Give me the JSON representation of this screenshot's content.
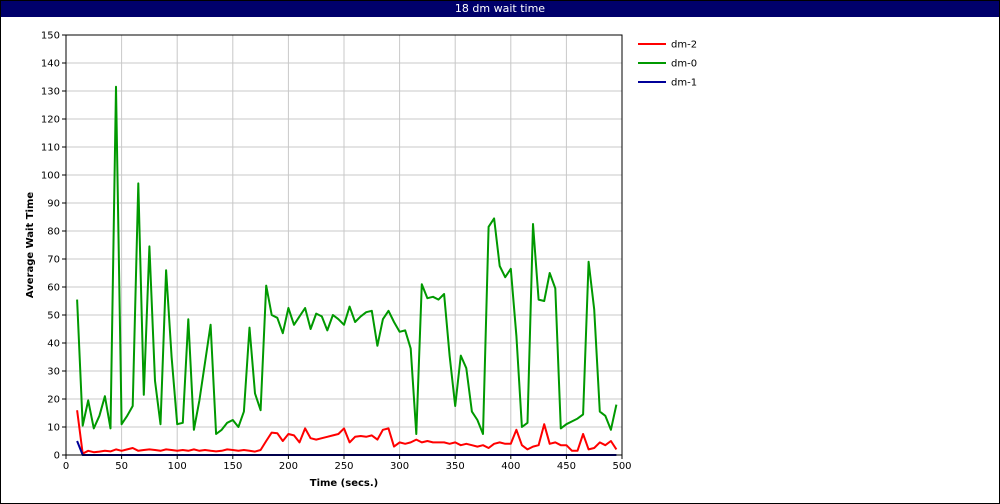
{
  "chart_data": {
    "type": "line",
    "title": "18 dm wait time",
    "xlabel": "Time (secs.)",
    "ylabel": "Average Wait Time",
    "xlim": [
      0,
      500
    ],
    "ylim": [
      0,
      150
    ],
    "x_ticks": [
      0,
      50,
      100,
      150,
      200,
      250,
      300,
      350,
      400,
      450,
      500
    ],
    "y_ticks": [
      0,
      10,
      20,
      30,
      40,
      50,
      60,
      70,
      80,
      90,
      100,
      110,
      120,
      130,
      140,
      150
    ],
    "grid": true,
    "legend_position": "top-right, outside plot",
    "series": [
      {
        "name": "dm-2",
        "color": "#ff0000",
        "points": [
          [
            10,
            16
          ],
          [
            15,
            0.5
          ],
          [
            20,
            1.5
          ],
          [
            25,
            1
          ],
          [
            30,
            1.2
          ],
          [
            35,
            1.5
          ],
          [
            40,
            1.3
          ],
          [
            45,
            2
          ],
          [
            50,
            1.5
          ],
          [
            55,
            2
          ],
          [
            60,
            2.5
          ],
          [
            65,
            1.5
          ],
          [
            70,
            1.8
          ],
          [
            75,
            2
          ],
          [
            80,
            1.8
          ],
          [
            85,
            1.5
          ],
          [
            90,
            2
          ],
          [
            95,
            1.8
          ],
          [
            100,
            1.5
          ],
          [
            105,
            1.8
          ],
          [
            110,
            1.5
          ],
          [
            115,
            2
          ],
          [
            120,
            1.5
          ],
          [
            125,
            1.8
          ],
          [
            130,
            1.5
          ],
          [
            135,
            1.3
          ],
          [
            140,
            1.5
          ],
          [
            145,
            2
          ],
          [
            150,
            1.8
          ],
          [
            155,
            1.5
          ],
          [
            160,
            1.8
          ],
          [
            165,
            1.5
          ],
          [
            170,
            1.2
          ],
          [
            175,
            1.8
          ],
          [
            180,
            5
          ],
          [
            185,
            8
          ],
          [
            190,
            7.8
          ],
          [
            195,
            5
          ],
          [
            200,
            7.5
          ],
          [
            205,
            7
          ],
          [
            210,
            4.5
          ],
          [
            215,
            9.5
          ],
          [
            220,
            6
          ],
          [
            225,
            5.5
          ],
          [
            230,
            6
          ],
          [
            235,
            6.5
          ],
          [
            240,
            7
          ],
          [
            245,
            7.5
          ],
          [
            250,
            9.5
          ],
          [
            255,
            4.5
          ],
          [
            260,
            6.5
          ],
          [
            265,
            6.8
          ],
          [
            270,
            6.5
          ],
          [
            275,
            7
          ],
          [
            280,
            5.5
          ],
          [
            285,
            9
          ],
          [
            290,
            9.5
          ],
          [
            295,
            3
          ],
          [
            300,
            4.5
          ],
          [
            305,
            4
          ],
          [
            310,
            4.5
          ],
          [
            315,
            5.5
          ],
          [
            320,
            4.5
          ],
          [
            325,
            5
          ],
          [
            330,
            4.5
          ],
          [
            335,
            4.5
          ],
          [
            340,
            4.5
          ],
          [
            345,
            4
          ],
          [
            350,
            4.5
          ],
          [
            355,
            3.5
          ],
          [
            360,
            4
          ],
          [
            365,
            3.5
          ],
          [
            370,
            3
          ],
          [
            375,
            3.5
          ],
          [
            380,
            2.5
          ],
          [
            385,
            4
          ],
          [
            390,
            4.5
          ],
          [
            395,
            4
          ],
          [
            400,
            4
          ],
          [
            405,
            9
          ],
          [
            410,
            3.5
          ],
          [
            415,
            2
          ],
          [
            420,
            3
          ],
          [
            425,
            3.5
          ],
          [
            430,
            11
          ],
          [
            435,
            4
          ],
          [
            440,
            4.5
          ],
          [
            445,
            3.5
          ],
          [
            450,
            3.5
          ],
          [
            455,
            1.5
          ],
          [
            460,
            1.5
          ],
          [
            465,
            7.5
          ],
          [
            470,
            2
          ],
          [
            475,
            2.5
          ],
          [
            480,
            4.5
          ],
          [
            485,
            3.5
          ],
          [
            490,
            5
          ],
          [
            495,
            2
          ]
        ]
      },
      {
        "name": "dm-0",
        "color": "#009900",
        "points": [
          [
            10,
            55.5
          ],
          [
            15,
            10.5
          ],
          [
            20,
            19.5
          ],
          [
            25,
            9.5
          ],
          [
            30,
            14
          ],
          [
            35,
            21
          ],
          [
            40,
            9.5
          ],
          [
            45,
            131.5
          ],
          [
            50,
            11
          ],
          [
            55,
            14
          ],
          [
            60,
            17.5
          ],
          [
            65,
            97
          ],
          [
            70,
            21.5
          ],
          [
            75,
            74.5
          ],
          [
            80,
            26.5
          ],
          [
            85,
            11
          ],
          [
            90,
            66
          ],
          [
            95,
            35
          ],
          [
            100,
            11
          ],
          [
            105,
            11.5
          ],
          [
            110,
            48.5
          ],
          [
            115,
            9
          ],
          [
            120,
            19.5
          ],
          [
            125,
            33
          ],
          [
            130,
            46.5
          ],
          [
            135,
            7.5
          ],
          [
            140,
            9
          ],
          [
            145,
            11.5
          ],
          [
            150,
            12.5
          ],
          [
            155,
            10
          ],
          [
            160,
            15.5
          ],
          [
            165,
            45.5
          ],
          [
            170,
            22
          ],
          [
            175,
            16
          ],
          [
            180,
            60.5
          ],
          [
            185,
            50
          ],
          [
            190,
            49
          ],
          [
            195,
            43.5
          ],
          [
            200,
            52.5
          ],
          [
            205,
            46.5
          ],
          [
            210,
            49.5
          ],
          [
            215,
            52.5
          ],
          [
            220,
            45
          ],
          [
            225,
            50.5
          ],
          [
            230,
            49.5
          ],
          [
            235,
            44.5
          ],
          [
            240,
            50
          ],
          [
            245,
            48.5
          ],
          [
            250,
            46.5
          ],
          [
            255,
            53
          ],
          [
            260,
            47.5
          ],
          [
            265,
            49.5
          ],
          [
            270,
            51
          ],
          [
            275,
            51.5
          ],
          [
            280,
            39
          ],
          [
            285,
            48.5
          ],
          [
            290,
            51.5
          ],
          [
            295,
            47.5
          ],
          [
            300,
            44
          ],
          [
            305,
            44.5
          ],
          [
            310,
            38
          ],
          [
            315,
            7.5
          ],
          [
            320,
            61
          ],
          [
            325,
            56
          ],
          [
            330,
            56.5
          ],
          [
            335,
            55.5
          ],
          [
            340,
            57.5
          ],
          [
            345,
            35.5
          ],
          [
            350,
            17.5
          ],
          [
            355,
            35.5
          ],
          [
            360,
            31
          ],
          [
            365,
            15.5
          ],
          [
            370,
            12.5
          ],
          [
            375,
            7.5
          ],
          [
            380,
            81.5
          ],
          [
            385,
            84.5
          ],
          [
            390,
            67.5
          ],
          [
            395,
            63.5
          ],
          [
            400,
            66.5
          ],
          [
            405,
            42.5
          ],
          [
            410,
            10
          ],
          [
            415,
            11.5
          ],
          [
            420,
            82.5
          ],
          [
            425,
            55.5
          ],
          [
            430,
            55
          ],
          [
            435,
            65
          ],
          [
            440,
            59.5
          ],
          [
            445,
            9.5
          ],
          [
            450,
            11
          ],
          [
            455,
            12
          ],
          [
            460,
            13
          ],
          [
            465,
            14.5
          ],
          [
            470,
            69
          ],
          [
            475,
            52
          ],
          [
            480,
            15.5
          ],
          [
            485,
            14
          ],
          [
            490,
            9
          ],
          [
            495,
            18
          ]
        ]
      },
      {
        "name": "dm-1",
        "color": "#000099",
        "points": [
          [
            10,
            5
          ],
          [
            15,
            0
          ],
          [
            20,
            0
          ],
          [
            50,
            0
          ],
          [
            100,
            0
          ],
          [
            150,
            0
          ],
          [
            200,
            0
          ],
          [
            250,
            0
          ],
          [
            300,
            0
          ],
          [
            350,
            0
          ],
          [
            400,
            0
          ],
          [
            450,
            0
          ],
          [
            495,
            0
          ]
        ]
      }
    ]
  }
}
